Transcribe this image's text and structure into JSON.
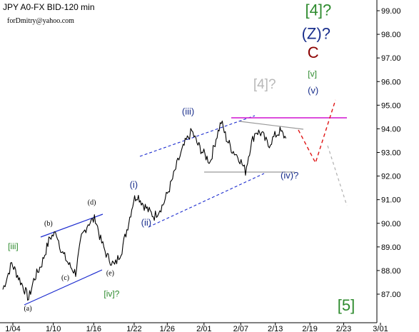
{
  "header": {
    "title": "JPY A0-FX BID-120 min",
    "author": "forDmitry@yahoo.com"
  },
  "chart_data": {
    "type": "line",
    "title": "JPY A0-FX BID-120 min",
    "x_ticks": [
      "1/04",
      "1/10",
      "1/16",
      "1/22",
      "1/26",
      "2/01",
      "2/07",
      "2/13",
      "2/19",
      "2/23",
      "3/01"
    ],
    "y_ticks": [
      "87.00",
      "88.00",
      "89.00",
      "90.00",
      "91.00",
      "92.00",
      "93.00",
      "94.00",
      "95.00",
      "96.00",
      "97.00",
      "98.00",
      "99.00"
    ],
    "ylim": [
      86.3,
      99.3
    ],
    "grid": false,
    "x_index_range": [
      0,
      38.5
    ],
    "x_tick_index": [
      0,
      5.5,
      11,
      16.5,
      21,
      26,
      31,
      35.7,
      40.4,
      45,
      50
    ],
    "price_anchors": [
      {
        "x": 0,
        "y": 87.2
      },
      {
        "x": 1.2,
        "y": 88.3
      },
      {
        "x": 2.0,
        "y": 87.8
      },
      {
        "x": 3.1,
        "y": 87.1
      },
      {
        "x": 3.5,
        "y": 86.8
      },
      {
        "x": 4.2,
        "y": 87.6
      },
      {
        "x": 5.3,
        "y": 88.3
      },
      {
        "x": 6.4,
        "y": 89.4
      },
      {
        "x": 7.3,
        "y": 89.6
      },
      {
        "x": 8.0,
        "y": 88.8
      },
      {
        "x": 9.1,
        "y": 88.2
      },
      {
        "x": 9.9,
        "y": 87.9
      },
      {
        "x": 10.7,
        "y": 89.4
      },
      {
        "x": 11.6,
        "y": 90.0
      },
      {
        "x": 12.6,
        "y": 90.2
      },
      {
        "x": 13.3,
        "y": 89.3
      },
      {
        "x": 14.2,
        "y": 88.6
      },
      {
        "x": 15.2,
        "y": 88.2
      },
      {
        "x": 16.2,
        "y": 88.9
      },
      {
        "x": 17.0,
        "y": 89.9
      },
      {
        "x": 17.8,
        "y": 91.0
      },
      {
        "x": 18.3,
        "y": 91.2
      },
      {
        "x": 19.1,
        "y": 90.8
      },
      {
        "x": 19.9,
        "y": 90.5
      },
      {
        "x": 20.6,
        "y": 90.3
      },
      {
        "x": 21.8,
        "y": 90.8
      },
      {
        "x": 22.8,
        "y": 91.6
      },
      {
        "x": 23.8,
        "y": 92.6
      },
      {
        "x": 24.8,
        "y": 93.4
      },
      {
        "x": 25.7,
        "y": 93.9
      },
      {
        "x": 26.4,
        "y": 93.4
      },
      {
        "x": 27.2,
        "y": 93.0
      },
      {
        "x": 28.2,
        "y": 92.6
      },
      {
        "x": 29.0,
        "y": 93.6
      },
      {
        "x": 29.7,
        "y": 94.3
      },
      {
        "x": 30.4,
        "y": 93.6
      },
      {
        "x": 31.2,
        "y": 93.1
      },
      {
        "x": 32.1,
        "y": 92.8
      },
      {
        "x": 33.0,
        "y": 92.2
      },
      {
        "x": 33.7,
        "y": 93.3
      },
      {
        "x": 34.4,
        "y": 93.9
      },
      {
        "x": 35.2,
        "y": 93.8
      },
      {
        "x": 36.1,
        "y": 93.3
      },
      {
        "x": 37.0,
        "y": 93.7
      },
      {
        "x": 37.7,
        "y": 93.9
      },
      {
        "x": 38.5,
        "y": 93.6
      }
    ],
    "waves": [
      {
        "label": "[iii]",
        "x": 1.4,
        "y": 88.9,
        "color": "#2e8b2e"
      },
      {
        "label": "(a)",
        "x": 3.4,
        "y": 86.3,
        "color": "#000000"
      },
      {
        "label": "(b)",
        "x": 6.2,
        "y": 89.9,
        "color": "#000000"
      },
      {
        "label": "(c)",
        "x": 8.5,
        "y": 87.6,
        "color": "#000000"
      },
      {
        "label": "(d)",
        "x": 12.1,
        "y": 90.8,
        "color": "#000000"
      },
      {
        "label": "(e)",
        "x": 14.6,
        "y": 87.8,
        "color": "#000000"
      },
      {
        "label": "[iv]?",
        "x": 14.8,
        "y": 86.9,
        "color": "#2e8b2e"
      },
      {
        "label": "(i)",
        "x": 17.8,
        "y": 91.5,
        "color": "#1a2f8c"
      },
      {
        "label": "(ii)",
        "x": 19.5,
        "y": 89.9,
        "color": "#1a2f8c"
      },
      {
        "label": "(iii)",
        "x": 25.2,
        "y": 94.6,
        "color": "#1a2f8c"
      },
      {
        "label": "(iv)?",
        "x": 39.0,
        "y": 91.9,
        "color": "#1a2f8c"
      },
      {
        "label": "[4]?",
        "x": 35.6,
        "y": 95.7,
        "color": "#b8b8b8"
      },
      {
        "label": "[v]",
        "x": 42.1,
        "y": 96.2,
        "color": "#2e8b2e"
      },
      {
        "label": "(v)",
        "x": 42.2,
        "y": 95.5,
        "color": "#1a2f8c"
      },
      {
        "label": "C",
        "x": 42.2,
        "y": 97.0,
        "color": "#8b0000"
      },
      {
        "label": "(Z)?",
        "x": 42.6,
        "y": 97.8,
        "color": "#1a2f8c"
      },
      {
        "label": "[4]?",
        "x": 42.9,
        "y": 98.8,
        "color": "#2e8b2e"
      },
      {
        "label": "[5]",
        "x": 46.7,
        "y": 86.3,
        "color": "#2e8b2e"
      }
    ]
  }
}
